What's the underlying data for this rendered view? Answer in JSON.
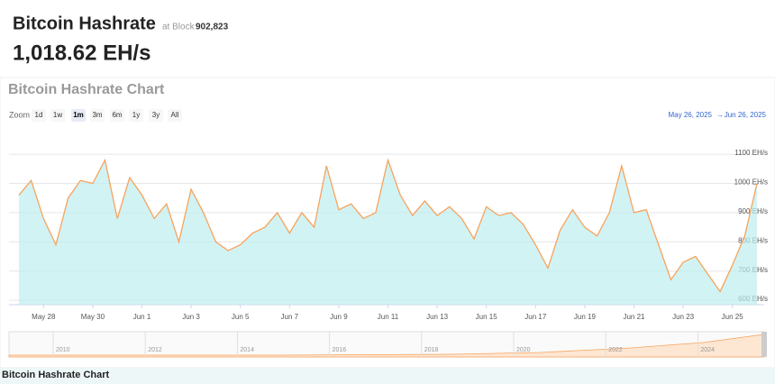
{
  "header": {
    "title": "Bitcoin Hashrate",
    "block_prefix": "at Block",
    "block": "902,823",
    "value": "1,018.62 EH/s"
  },
  "zoom": {
    "label": "Zoom",
    "buttons": [
      "1d",
      "1w",
      "1m",
      "3m",
      "6m",
      "1y",
      "3y",
      "All"
    ],
    "selected": 2
  },
  "range": {
    "from": "May 26, 2025",
    "arrow": "→",
    "to": "Jun 26, 2025"
  },
  "chart_data": {
    "type": "area",
    "title": "Bitcoin Hashrate Chart",
    "categories": [
      null,
      null,
      "May 28",
      null,
      null,
      null,
      "May 30",
      null,
      null,
      null,
      "Jun 1",
      null,
      null,
      null,
      "Jun 3",
      null,
      null,
      null,
      "Jun 5",
      null,
      null,
      null,
      "Jun 7",
      null,
      null,
      null,
      "Jun 9",
      null,
      null,
      null,
      "Jun 11",
      null,
      null,
      null,
      "Jun 13",
      null,
      null,
      null,
      "Jun 15",
      null,
      null,
      null,
      "Jun 17",
      null,
      null,
      null,
      "Jun 19",
      null,
      null,
      null,
      "Jun 21",
      null,
      null,
      null,
      "Jun 23",
      null,
      null,
      null,
      "Jun 25",
      null,
      null
    ],
    "series": [
      {
        "name": "Hashrate",
        "color": "#f7a35c",
        "fill": "#bfeef0",
        "values": [
          960,
          1010,
          880,
          790,
          950,
          1010,
          1000,
          1080,
          880,
          1020,
          960,
          880,
          930,
          800,
          980,
          900,
          800,
          770,
          790,
          830,
          850,
          900,
          830,
          900,
          850,
          1060,
          910,
          930,
          880,
          900,
          1080,
          960,
          890,
          940,
          890,
          920,
          880,
          810,
          920,
          890,
          900,
          860,
          790,
          710,
          840,
          910,
          850,
          820,
          900,
          1060,
          900,
          910,
          790,
          670,
          730,
          750,
          690,
          630,
          720,
          820,
          1000
        ]
      }
    ],
    "ylim": [
      585,
      1165
    ],
    "yticks": [
      {
        "value": 600,
        "label": "600 EH/s"
      },
      {
        "value": 700,
        "label": "700 EH/s"
      },
      {
        "value": 800,
        "label": "800 EH/s"
      },
      {
        "value": 900,
        "label": "900 EH/s"
      },
      {
        "value": 1000,
        "label": "1000 EH/s"
      },
      {
        "value": 1100,
        "label": "1100 EH/s"
      }
    ],
    "grid": true
  },
  "navigator": {
    "years": [
      2010,
      2012,
      2014,
      2016,
      2018,
      2020,
      2022,
      2024
    ]
  },
  "footer": {
    "title": "Bitcoin Hashrate Chart"
  }
}
